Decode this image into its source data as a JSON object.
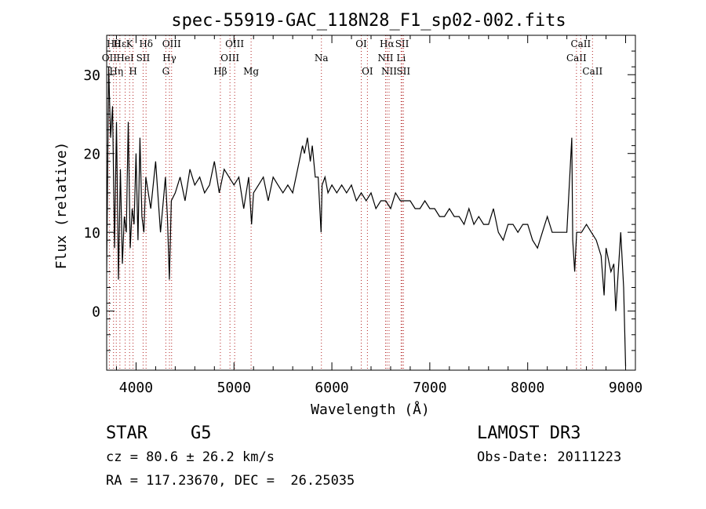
{
  "chart_data": {
    "type": "line",
    "title": "spec-55919-GAC_118N28_F1_sp02-002.fits",
    "xlabel": "Wavelength (Å)",
    "ylabel": "Flux (relative)",
    "xlim": [
      3700,
      9100
    ],
    "ylim": [
      -7.5,
      35
    ],
    "x_ticks": [
      4000,
      5000,
      6000,
      7000,
      8000,
      9000
    ],
    "x_tick_labels": [
      "4000",
      "5000",
      "6000",
      "7000",
      "8000",
      "9000"
    ],
    "y_ticks": [
      0,
      10,
      20,
      30
    ],
    "y_tick_labels": [
      "0",
      "10",
      "20",
      "30"
    ],
    "line_color": "#000000",
    "marker_color": "#b22222",
    "series": [
      {
        "name": "flux",
        "x": [
          3700,
          3720,
          3740,
          3760,
          3780,
          3800,
          3820,
          3840,
          3860,
          3880,
          3900,
          3920,
          3940,
          3960,
          3980,
          4000,
          4020,
          4040,
          4060,
          4080,
          4100,
          4150,
          4200,
          4250,
          4300,
          4320,
          4340,
          4360,
          4400,
          4450,
          4500,
          4550,
          4600,
          4650,
          4700,
          4750,
          4800,
          4850,
          4900,
          4950,
          5000,
          5050,
          5100,
          5150,
          5180,
          5200,
          5250,
          5300,
          5350,
          5400,
          5450,
          5500,
          5550,
          5600,
          5650,
          5700,
          5720,
          5750,
          5780,
          5800,
          5830,
          5860,
          5890,
          5900,
          5930,
          5960,
          6000,
          6050,
          6100,
          6150,
          6200,
          6250,
          6300,
          6350,
          6400,
          6450,
          6500,
          6550,
          6600,
          6650,
          6700,
          6750,
          6800,
          6850,
          6900,
          6950,
          7000,
          7050,
          7100,
          7150,
          7200,
          7250,
          7300,
          7350,
          7400,
          7450,
          7500,
          7550,
          7600,
          7650,
          7700,
          7750,
          7800,
          7850,
          7900,
          7950,
          8000,
          8050,
          8100,
          8150,
          8200,
          8250,
          8300,
          8350,
          8400,
          8450,
          8460,
          8480,
          8500,
          8550,
          8600,
          8650,
          8700,
          8750,
          8780,
          8800,
          8850,
          8880,
          8900,
          8950,
          8980,
          9000
        ],
        "y": [
          5,
          31,
          22,
          26,
          8,
          24,
          4,
          18,
          6,
          12,
          10,
          24,
          8,
          13,
          11,
          20,
          9,
          22,
          12,
          10,
          17,
          13,
          19,
          10,
          17,
          12,
          4,
          14,
          15,
          17,
          14,
          18,
          16,
          17,
          15,
          16,
          19,
          15,
          18,
          17,
          16,
          17,
          13,
          17,
          11,
          15,
          16,
          17,
          14,
          17,
          16,
          15,
          16,
          15,
          18,
          21,
          20,
          22,
          19,
          21,
          17,
          17,
          10,
          16,
          17,
          15,
          16,
          15,
          16,
          15,
          16,
          14,
          15,
          14,
          15,
          13,
          14,
          14,
          13,
          15,
          14,
          14,
          14,
          13,
          13,
          14,
          13,
          13,
          12,
          12,
          13,
          12,
          12,
          11,
          13,
          11,
          12,
          11,
          11,
          13,
          10,
          9,
          11,
          11,
          10,
          11,
          11,
          9,
          8,
          10,
          12,
          10,
          10,
          10,
          10,
          22,
          9,
          5,
          10,
          10,
          11,
          10,
          9,
          7,
          2,
          8,
          5,
          6,
          0,
          10,
          3,
          -7
        ]
      }
    ],
    "lines": [
      {
        "w": 3727,
        "label": "OII",
        "row": 1
      },
      {
        "w": 3770,
        "label": "Hθ",
        "row": 0
      },
      {
        "w": 3798,
        "label": "Hη",
        "row": 2
      },
      {
        "w": 3835,
        "label": "Hε",
        "row": 0
      },
      {
        "w": 3889,
        "label": "HeI",
        "row": 1
      },
      {
        "w": 3934,
        "label": "K",
        "row": 0
      },
      {
        "w": 3969,
        "label": "H",
        "row": 2
      },
      {
        "w": 4072,
        "label": "SII",
        "row": 1
      },
      {
        "w": 4102,
        "label": "Hδ",
        "row": 0
      },
      {
        "w": 4304,
        "label": "G",
        "row": 2
      },
      {
        "w": 4341,
        "label": "Hγ",
        "row": 1
      },
      {
        "w": 4363,
        "label": "OIII",
        "row": 0
      },
      {
        "w": 4861,
        "label": "Hβ",
        "row": 2
      },
      {
        "w": 4959,
        "label": "OIII",
        "row": 1
      },
      {
        "w": 5007,
        "label": "OIII",
        "row": 0
      },
      {
        "w": 5175,
        "label": "Mg",
        "row": 2
      },
      {
        "w": 5893,
        "label": "Na",
        "row": 1
      },
      {
        "w": 6300,
        "label": "OI",
        "row": 0
      },
      {
        "w": 6363,
        "label": "OI",
        "row": 2
      },
      {
        "w": 6548,
        "label": "NII",
        "row": 1
      },
      {
        "w": 6563,
        "label": "Hα",
        "row": 0
      },
      {
        "w": 6584,
        "label": "NII",
        "row": 2
      },
      {
        "w": 6707,
        "label": "Li",
        "row": 1
      },
      {
        "w": 6717,
        "label": "SII",
        "row": 0
      },
      {
        "w": 6731,
        "label": "SII",
        "row": 2
      },
      {
        "w": 8498,
        "label": "CaII",
        "row": 1
      },
      {
        "w": 8542,
        "label": "CaII",
        "row": 0
      },
      {
        "w": 8662,
        "label": "CaII",
        "row": 2
      }
    ]
  },
  "footer": {
    "class_label": "STAR",
    "subclass": "G5",
    "survey": "LAMOST DR3",
    "cz": "cz = 80.6 ± 26.2 km/s",
    "obs_date": "Obs-Date: 20111223",
    "coords": "RA = 117.23670, DEC =  26.25035"
  }
}
